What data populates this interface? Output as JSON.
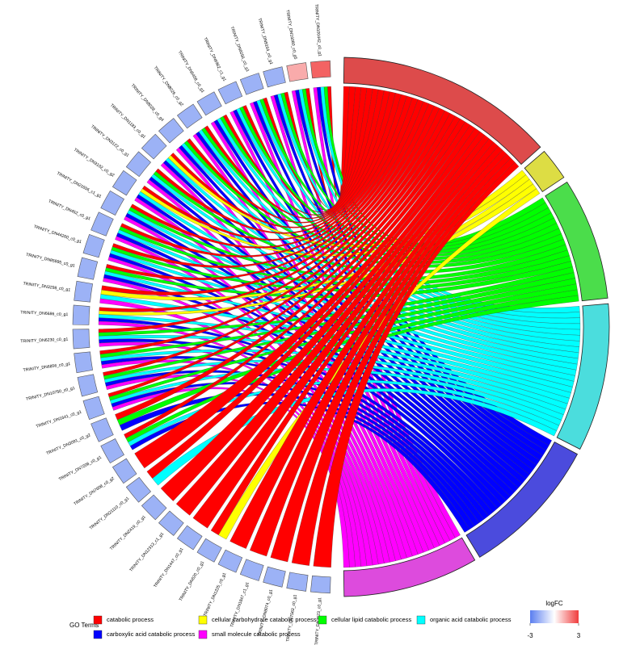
{
  "chart_data": {
    "type": "chord",
    "genes": [
      {
        "name": "TRINITY_DN100442_c0_g1",
        "logFC": 2.4
      },
      {
        "name": "TRINITY_DN16080_c0_g5",
        "logFC": 1.3
      },
      {
        "name": "TRINITY_DN9164_c0_g1",
        "logFC": -1.8
      },
      {
        "name": "TRINITY_DN6056_c0_g1",
        "logFC": -1.8
      },
      {
        "name": "TRINITY_DN6962_c1_g1",
        "logFC": -1.8
      },
      {
        "name": "TRINITY_DN6458_c0_g1",
        "logFC": -1.8
      },
      {
        "name": "TRINITY_DN8026_c0_g2",
        "logFC": -1.8
      },
      {
        "name": "TRINITY_DN8028_c0_g4",
        "logFC": -1.8
      },
      {
        "name": "TRINITY_DN1183_c0_g1",
        "logFC": -1.8
      },
      {
        "name": "TRINITY_DN3122_c0_g1",
        "logFC": -1.8
      },
      {
        "name": "TRINITY_DN3102_c0_g2",
        "logFC": -1.8
      },
      {
        "name": "TRINITY_DN21656_c1_g1",
        "logFC": -1.8
      },
      {
        "name": "TRINITY_DN452_c0_g1",
        "logFC": -1.8
      },
      {
        "name": "TRINITY_DN44260_c0_g1",
        "logFC": -1.8
      },
      {
        "name": "TRINITY_DN85995_c0_g1",
        "logFC": -1.8
      },
      {
        "name": "TRINITY_DN3298_c0_g1",
        "logFC": -1.8
      },
      {
        "name": "TRINITY_DN6686_c0_g1",
        "logFC": -1.8
      },
      {
        "name": "TRINITY_DN6230_c0_g1",
        "logFC": -1.8
      },
      {
        "name": "TRINITY_DN6856_c0_g1",
        "logFC": -1.8
      },
      {
        "name": "TRINITY_DN10750_c0_g1",
        "logFC": -1.8
      },
      {
        "name": "TRINITY_DN1641_c0_g1",
        "logFC": -1.8
      },
      {
        "name": "TRINITY_DN3091_c0_g2",
        "logFC": -1.8
      },
      {
        "name": "TRINITY_DN7208_c0_g1",
        "logFC": -1.8
      },
      {
        "name": "TRINITY_DN7608_c0_g2",
        "logFC": -1.8
      },
      {
        "name": "TRINITY_DN21110_c0_g1",
        "logFC": -1.8
      },
      {
        "name": "TRINITY_DN2419_c0_g1",
        "logFC": -1.8
      },
      {
        "name": "TRINITY_DN12313_c1_g1",
        "logFC": -1.8
      },
      {
        "name": "TRINITY_DN1447_c0_g1",
        "logFC": -1.8
      },
      {
        "name": "TRINITY_DN620_c0_g1",
        "logFC": -1.8
      },
      {
        "name": "TRINITY_DN1225_c0_g1",
        "logFC": -1.8
      },
      {
        "name": "TRINITY_DN1847_c1_g1",
        "logFC": -1.8
      },
      {
        "name": "TRINITY_DN8074_c0_g1",
        "logFC": -1.8
      },
      {
        "name": "TRINITY_DN7563_c0_g1",
        "logFC": -1.8
      },
      {
        "name": "TRINITY_DN3523_c0_g1",
        "logFC": -1.8
      }
    ],
    "terms": [
      {
        "name": "catabolic process",
        "color": "#ff0000",
        "arc_color": "#dd4b4b",
        "genes": [
          0,
          1,
          2,
          3,
          4,
          5,
          6,
          7,
          8,
          9,
          10,
          11,
          12,
          13,
          14,
          15,
          16,
          17,
          18,
          19,
          20,
          21,
          22,
          23,
          24,
          25,
          26,
          27,
          28,
          29,
          30,
          31,
          32,
          33
        ]
      },
      {
        "name": "cellular carbohydrate catabolic process",
        "color": "#ffff00",
        "arc_color": "#dddd44",
        "genes": [
          8,
          10,
          15,
          16,
          28
        ]
      },
      {
        "name": "cellular lipid catabolic process",
        "color": "#00ff00",
        "arc_color": "#4bdd4b",
        "genes": [
          0,
          1,
          2,
          3,
          4,
          5,
          6,
          7,
          9,
          11,
          12,
          13,
          14,
          17,
          18,
          19,
          20,
          21,
          22
        ]
      },
      {
        "name": "organic acid catabolic process",
        "color": "#00ffff",
        "arc_color": "#4bdddd",
        "genes": [
          0,
          1,
          2,
          3,
          4,
          5,
          6,
          7,
          8,
          9,
          10,
          11,
          12,
          13,
          14,
          15,
          16,
          17,
          18,
          19,
          20,
          22,
          24
        ]
      },
      {
        "name": "carboxylic acid catabolic process",
        "color": "#0000ff",
        "arc_color": "#4b4bdd",
        "genes": [
          0,
          1,
          2,
          3,
          4,
          5,
          6,
          7,
          8,
          9,
          10,
          11,
          12,
          13,
          14,
          16,
          17,
          18,
          19,
          20,
          21,
          22
        ]
      },
      {
        "name": "small molecule catabolic process",
        "color": "#ff00ff",
        "arc_color": "#dd4bdd",
        "genes": [
          0,
          1,
          2,
          3,
          4,
          5,
          6,
          7,
          8,
          9,
          10,
          11,
          12,
          13,
          14,
          15,
          16,
          17,
          18,
          19,
          20
        ]
      }
    ],
    "legend_title": "GO Terms",
    "colorbar": {
      "title": "logFC",
      "lim": [
        -3,
        3
      ],
      "ticks": [
        -3,
        3
      ],
      "colors": [
        "#5a7ef0",
        "#ffffff",
        "#f03c3c"
      ]
    }
  }
}
